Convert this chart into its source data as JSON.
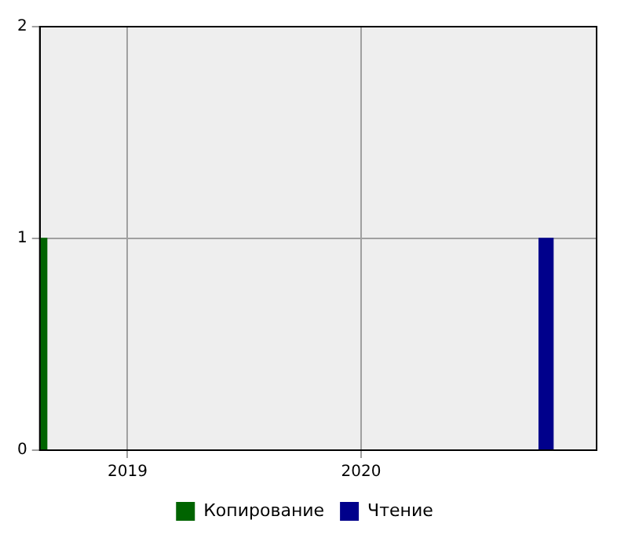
{
  "chart_data": {
    "type": "bar",
    "series": [
      {
        "name": "Копирование",
        "color": "#006400",
        "x": [
          "2018-08-28"
        ],
        "values": [
          1
        ]
      },
      {
        "name": "Чтение",
        "color": "#00008b",
        "x": [
          "2020-10-05"
        ],
        "values": [
          1
        ]
      }
    ],
    "xlim": [
      "2018-08-17",
      "2021-01-03"
    ],
    "xticks": [
      "2019",
      "2020"
    ],
    "ylim": [
      0,
      2
    ],
    "yticks": [
      0,
      1,
      2
    ],
    "grid": true,
    "legend": "bottom"
  }
}
